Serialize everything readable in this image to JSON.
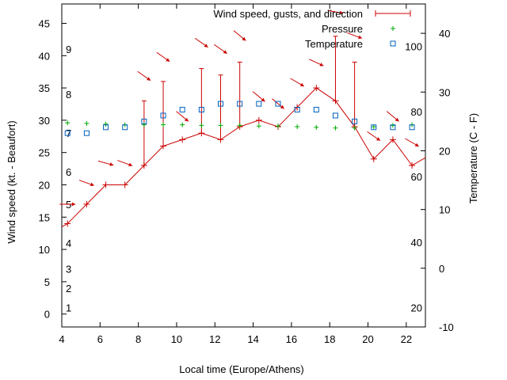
{
  "chart_data": {
    "type": "line",
    "xlabel": "Local time (Europe/Athens)",
    "ylabel_left": "Wind speed (kt. - Beaufort)",
    "ylabel_right": "Temperature (C - F)",
    "xlim": [
      4,
      23
    ],
    "ylim_left": [
      -2,
      48
    ],
    "ylim_right": [
      -10,
      45
    ],
    "x_ticks": [
      "4",
      "6",
      "8",
      "10",
      "12",
      "14",
      "16",
      "18",
      "20",
      "22"
    ],
    "y_ticks_left": [
      "0",
      "5",
      "10",
      "15",
      "20",
      "25",
      "30",
      "35",
      "40",
      "45"
    ],
    "y_ticks_right": [
      "-10",
      "0",
      "10",
      "20",
      "30",
      "40"
    ],
    "beaufort_labels": [
      {
        "label": "1",
        "kt": 1
      },
      {
        "label": "2",
        "kt": 4
      },
      {
        "label": "3",
        "kt": 7
      },
      {
        "label": "4",
        "kt": 11
      },
      {
        "label": "5",
        "kt": 17
      },
      {
        "label": "6",
        "kt": 22
      },
      {
        "label": "7",
        "kt": 28
      },
      {
        "label": "8",
        "kt": 34
      },
      {
        "label": "9",
        "kt": 41
      }
    ],
    "fahrenheit_labels": [
      {
        "label": "20",
        "c": -6.7
      },
      {
        "label": "40",
        "c": 4.4
      },
      {
        "label": "60",
        "c": 15.6
      },
      {
        "label": "80",
        "c": 26.7
      },
      {
        "label": "100",
        "c": 37.8
      }
    ],
    "legend": [
      "Wind speed, gusts, and direction",
      "Pressure",
      "Temperature"
    ],
    "series": [
      {
        "name": "Wind speed, gusts, and direction",
        "color": "#cc0000",
        "x": [
          4.3,
          5.3,
          6.3,
          7.3,
          8.3,
          9.3,
          10.3,
          11.3,
          12.3,
          13.3,
          14.3,
          15.3,
          16.3,
          17.3,
          18.3,
          19.3,
          20.3,
          21.3,
          22.3
        ],
        "y": [
          14,
          17,
          20,
          20,
          23,
          26,
          27,
          28,
          27,
          29,
          30,
          29,
          32,
          35,
          33,
          29,
          24,
          27,
          23
        ],
        "gust": [
          null,
          null,
          null,
          null,
          33,
          36,
          null,
          38,
          37,
          39,
          null,
          null,
          null,
          null,
          43,
          39,
          null,
          null,
          null
        ],
        "arrow_angle_deg": [
          0,
          20,
          15,
          20,
          35,
          35,
          40,
          35,
          35,
          40,
          40,
          40,
          30,
          25,
          10,
          20,
          35,
          40,
          30
        ]
      },
      {
        "name": "Pressure",
        "color": "#00aa00",
        "x": [
          4.3,
          5.3,
          6.3,
          7.3,
          8.3,
          9.3,
          10.3,
          11.3,
          12.3,
          13.3,
          14.3,
          15.3,
          16.3,
          17.3,
          18.3,
          19.3,
          20.3,
          21.3,
          22.3
        ],
        "y": [
          29.6,
          29.5,
          29.4,
          29.3,
          29.3,
          29.3,
          29.3,
          29.2,
          29.2,
          29.2,
          29.1,
          29.1,
          29.0,
          28.9,
          28.8,
          28.8,
          29.0,
          29.2,
          29.3
        ]
      },
      {
        "name": "Temperature",
        "color": "#0060c0",
        "x": [
          4.3,
          5.3,
          6.3,
          7.3,
          8.3,
          9.3,
          10.3,
          11.3,
          12.3,
          13.3,
          14.3,
          15.3,
          16.3,
          17.3,
          18.3,
          19.3,
          20.3,
          21.3,
          22.3
        ],
        "y": [
          23,
          23,
          24,
          24,
          25,
          26,
          27,
          27,
          28,
          28,
          28,
          28,
          27,
          27,
          26,
          25,
          24,
          24,
          24
        ]
      }
    ],
    "grid": false,
    "legend_position": "top-right"
  }
}
